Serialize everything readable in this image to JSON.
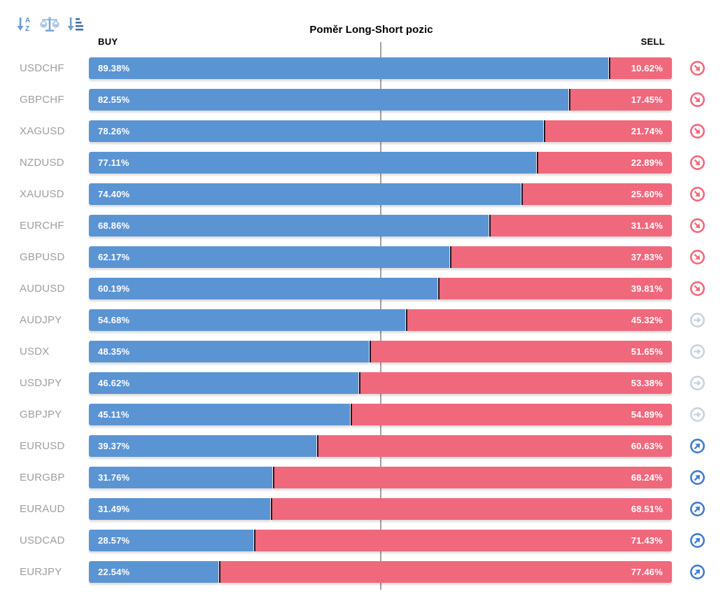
{
  "title": "Poměr Long-Short pozic",
  "columns": {
    "buy": "BUY",
    "sell": "SELL"
  },
  "toolbar": {
    "icons": [
      {
        "name": "sort-alpha-icon",
        "meaning": "sort alphabetically"
      },
      {
        "name": "balance-scale-icon",
        "meaning": "sort by balance / ratio"
      },
      {
        "name": "sort-amount-icon",
        "meaning": "sort by value"
      }
    ]
  },
  "colors": {
    "buy_bar": "#5b94d3",
    "sell_bar": "#f0687c",
    "bar_divider": "#241722",
    "center_line": "#a2a2a2",
    "label_text": "#9e9e9e",
    "signal_red": "#f2677b",
    "signal_gray": "#c9d3de",
    "signal_blue": "#3d7cd0"
  },
  "signal_legend": {
    "down": "red circle with down-right arrow",
    "neutral": "gray circle with right arrow",
    "up": "blue circle with up-right arrow"
  },
  "chart_data": {
    "type": "bar",
    "orientation": "horizontal-stacked",
    "title": "Poměr Long-Short pozic",
    "series": [
      {
        "name": "BUY"
      },
      {
        "name": "SELL"
      }
    ],
    "xlim": [
      0,
      100
    ],
    "center_guide_at": 50,
    "rows": [
      {
        "pair": "USDCHF",
        "buy": 89.38,
        "sell": 10.62,
        "buy_label": "89.38%",
        "sell_label": "10.62%",
        "signal": "down"
      },
      {
        "pair": "GBPCHF",
        "buy": 82.55,
        "sell": 17.45,
        "buy_label": "82.55%",
        "sell_label": "17.45%",
        "signal": "down"
      },
      {
        "pair": "XAGUSD",
        "buy": 78.26,
        "sell": 21.74,
        "buy_label": "78.26%",
        "sell_label": "21.74%",
        "signal": "down"
      },
      {
        "pair": "NZDUSD",
        "buy": 77.11,
        "sell": 22.89,
        "buy_label": "77.11%",
        "sell_label": "22.89%",
        "signal": "down"
      },
      {
        "pair": "XAUUSD",
        "buy": 74.4,
        "sell": 25.6,
        "buy_label": "74.40%",
        "sell_label": "25.60%",
        "signal": "down"
      },
      {
        "pair": "EURCHF",
        "buy": 68.86,
        "sell": 31.14,
        "buy_label": "68.86%",
        "sell_label": "31.14%",
        "signal": "down"
      },
      {
        "pair": "GBPUSD",
        "buy": 62.17,
        "sell": 37.83,
        "buy_label": "62.17%",
        "sell_label": "37.83%",
        "signal": "down"
      },
      {
        "pair": "AUDUSD",
        "buy": 60.19,
        "sell": 39.81,
        "buy_label": "60.19%",
        "sell_label": "39.81%",
        "signal": "down"
      },
      {
        "pair": "AUDJPY",
        "buy": 54.68,
        "sell": 45.32,
        "buy_label": "54.68%",
        "sell_label": "45.32%",
        "signal": "neutral"
      },
      {
        "pair": "USDX",
        "buy": 48.35,
        "sell": 51.65,
        "buy_label": "48.35%",
        "sell_label": "51.65%",
        "signal": "neutral"
      },
      {
        "pair": "USDJPY",
        "buy": 46.62,
        "sell": 53.38,
        "buy_label": "46.62%",
        "sell_label": "53.38%",
        "signal": "neutral"
      },
      {
        "pair": "GBPJPY",
        "buy": 45.11,
        "sell": 54.89,
        "buy_label": "45.11%",
        "sell_label": "54.89%",
        "signal": "neutral"
      },
      {
        "pair": "EURUSD",
        "buy": 39.37,
        "sell": 60.63,
        "buy_label": "39.37%",
        "sell_label": "60.63%",
        "signal": "up"
      },
      {
        "pair": "EURGBP",
        "buy": 31.76,
        "sell": 68.24,
        "buy_label": "31.76%",
        "sell_label": "68.24%",
        "signal": "up"
      },
      {
        "pair": "EURAUD",
        "buy": 31.49,
        "sell": 68.51,
        "buy_label": "31.49%",
        "sell_label": "68.51%",
        "signal": "up"
      },
      {
        "pair": "USDCAD",
        "buy": 28.57,
        "sell": 71.43,
        "buy_label": "28.57%",
        "sell_label": "71.43%",
        "signal": "up"
      },
      {
        "pair": "EURJPY",
        "buy": 22.54,
        "sell": 77.46,
        "buy_label": "22.54%",
        "sell_label": "77.46%",
        "signal": "up"
      }
    ]
  }
}
